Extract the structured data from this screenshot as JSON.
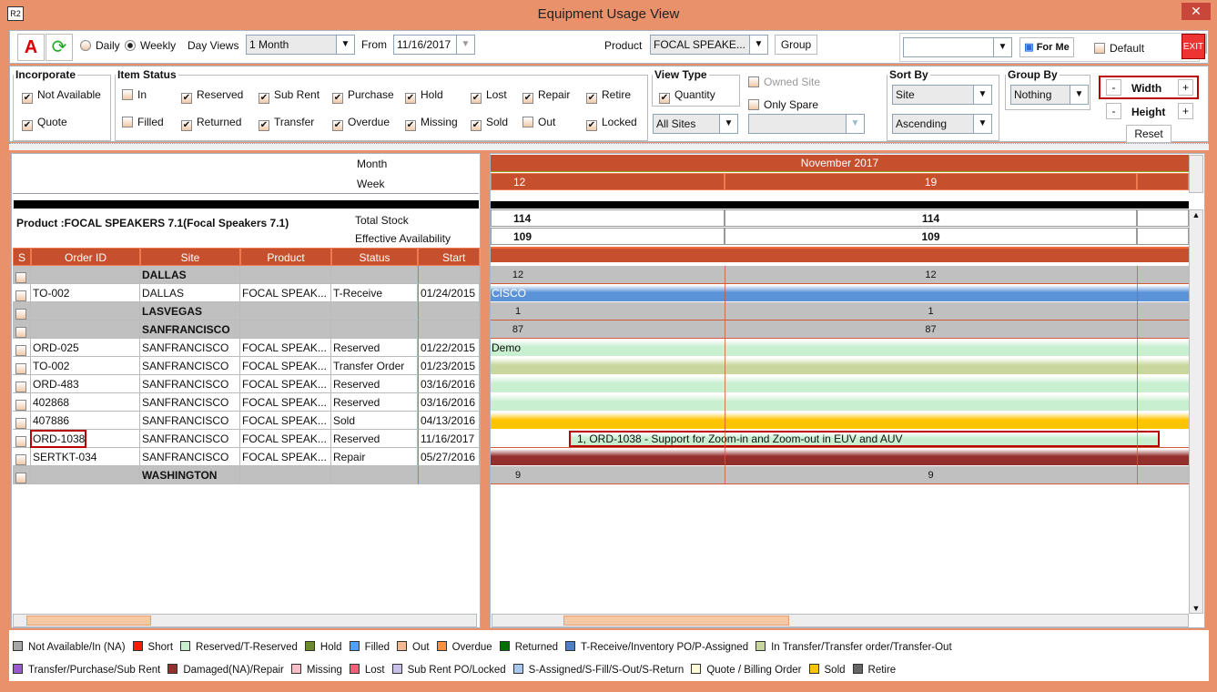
{
  "window": {
    "title": "Equipment Usage View",
    "logo": "R2"
  },
  "toolbar": {
    "daily": "Daily",
    "weekly": "Weekly",
    "selected_mode": "Weekly",
    "day_views_label": "Day Views",
    "day_views_value": "1 Month",
    "from_label": "From",
    "from_value": "11/16/2017",
    "product_label": "Product",
    "product_value": "FOCAL SPEAKE...",
    "group_button": "Group",
    "view_select_value": "",
    "for_me": "For Me",
    "default_label": "Default",
    "default_checked": false,
    "exit": "EXIT"
  },
  "incorporate": {
    "title": "Incorporate",
    "items": [
      {
        "label": "Not Available",
        "checked": true
      },
      {
        "label": "Quote",
        "checked": true
      }
    ]
  },
  "item_status": {
    "title": "Item Status",
    "items": [
      {
        "label": "In",
        "checked": false
      },
      {
        "label": "Reserved",
        "checked": true
      },
      {
        "label": "Sub Rent",
        "checked": true
      },
      {
        "label": "Purchase",
        "checked": true
      },
      {
        "label": "Hold",
        "checked": true
      },
      {
        "label": "Lost",
        "checked": true
      },
      {
        "label": "Repair",
        "checked": true
      },
      {
        "label": "Retire",
        "checked": true
      },
      {
        "label": "Filled",
        "checked": false
      },
      {
        "label": "Returned",
        "checked": true
      },
      {
        "label": "Transfer",
        "checked": true
      },
      {
        "label": "Overdue",
        "checked": true
      },
      {
        "label": "Missing",
        "checked": true
      },
      {
        "label": "Sold",
        "checked": true
      },
      {
        "label": "Out",
        "checked": false
      },
      {
        "label": "Locked",
        "checked": true
      }
    ]
  },
  "view_type": {
    "title": "View Type",
    "quantity": "Quantity",
    "quantity_checked": true,
    "sites": "All Sites",
    "owned_site": "Owned Site",
    "only_spare": "Only Spare"
  },
  "sort_by": {
    "title": "Sort By",
    "field": "Site",
    "order": "Ascending"
  },
  "group_by": {
    "title": "Group By",
    "value": "Nothing"
  },
  "size": {
    "minus": "-",
    "plus": "+",
    "width": "Width",
    "height": "Height",
    "reset": "Reset"
  },
  "left": {
    "month_label": "Month",
    "week_label": "Week",
    "product": "Product :FOCAL SPEAKERS 7.1(Focal Speakers 7.1)",
    "total_stock": "Total Stock",
    "effective": "Effective Availability",
    "columns": [
      "S",
      "Order ID",
      "Site",
      "Product",
      "Status",
      "Start Da"
    ],
    "rows": [
      {
        "group": true,
        "site": "DALLAS"
      },
      {
        "id": "TO-002",
        "site": "DALLAS",
        "product": "FOCAL SPEAK...",
        "status": "T-Receive",
        "start": "01/24/2015"
      },
      {
        "group": true,
        "site": "LASVEGAS"
      },
      {
        "group": true,
        "site": "SANFRANCISCO"
      },
      {
        "id": "ORD-025",
        "site": "SANFRANCISCO",
        "product": "FOCAL SPEAK...",
        "status": "Reserved",
        "start": "01/22/2015"
      },
      {
        "id": "TO-002",
        "site": "SANFRANCISCO",
        "product": "FOCAL SPEAK...",
        "status": "Transfer Order",
        "start": "01/23/2015"
      },
      {
        "id": "ORD-483",
        "site": "SANFRANCISCO",
        "product": "FOCAL SPEAK...",
        "status": "Reserved",
        "start": "03/16/2016"
      },
      {
        "id": "402868",
        "site": "SANFRANCISCO",
        "product": "FOCAL SPEAK...",
        "status": "Reserved",
        "start": "03/16/2016"
      },
      {
        "id": "407886",
        "site": "SANFRANCISCO",
        "product": "FOCAL SPEAK...",
        "status": "Sold",
        "start": "04/13/2016"
      },
      {
        "id": "ORD-1038",
        "site": "SANFRANCISCO",
        "product": "FOCAL SPEAK...",
        "status": "Reserved",
        "start": "11/16/2017",
        "highlight": true
      },
      {
        "id": "SERTKT-034",
        "site": "SANFRANCISCO",
        "product": "FOCAL SPEAK...",
        "status": "Repair",
        "start": "05/27/2016"
      },
      {
        "group": true,
        "site": "WASHINGTON"
      }
    ]
  },
  "right": {
    "month": "November 2017",
    "weeks": [
      "12",
      "19",
      ""
    ],
    "total_stock": [
      "114",
      "114",
      ""
    ],
    "effective": [
      "109",
      "109",
      ""
    ],
    "rows": [
      {
        "counts": [
          "12",
          "12"
        ]
      },
      {
        "bar": "#5b93d8",
        "text": "CISCO",
        "text_color": "#fff"
      },
      {
        "counts": [
          "1",
          "1"
        ]
      },
      {
        "counts": [
          "87",
          "87"
        ]
      },
      {
        "bar": "#c8efd0",
        "text": "Demo"
      },
      {
        "bar": "#c9d79e",
        "text": ""
      },
      {
        "bar": "#c8efd0",
        "text": ""
      },
      {
        "bar": "#c8efd0",
        "text": ""
      },
      {
        "bar": "#ffc400",
        "text": ""
      },
      {
        "bar": "#c8efd0",
        "text": "1, ORD-1038 - Support for Zoom-in and Zoom-out in EUV and AUV",
        "partial": true
      },
      {
        "bar": "#93302e",
        "text": ""
      },
      {
        "counts": [
          "9",
          "9"
        ]
      }
    ]
  },
  "legend": [
    {
      "label": "Not Available/In (NA)",
      "color": "#a8a8a8"
    },
    {
      "label": "Short",
      "color": "#ff1a00"
    },
    {
      "label": "Reserved/T-Reserved",
      "color": "#c8efd0"
    },
    {
      "label": "Hold",
      "color": "#6b8a2e"
    },
    {
      "label": "Filled",
      "color": "#4fa0ff"
    },
    {
      "label": "Out",
      "color": "#f6b890"
    },
    {
      "label": "Overdue",
      "color": "#f7913f"
    },
    {
      "label": "Returned",
      "color": "#007000"
    },
    {
      "label": "T-Receive/Inventory PO/P-Assigned",
      "color": "#4d7fc4"
    },
    {
      "label": "In Transfer/Transfer order/Transfer-Out",
      "color": "#c9d79e"
    },
    {
      "label": "Transfer/Purchase/Sub Rent",
      "color": "#9b59d0"
    },
    {
      "label": "Damaged(NA)/Repair",
      "color": "#93302e"
    },
    {
      "label": "Missing",
      "color": "#f7c0c8"
    },
    {
      "label": "Lost",
      "color": "#f06078"
    },
    {
      "label": "Sub Rent PO/Locked",
      "color": "#c8c0e8"
    },
    {
      "label": "S-Assigned/S-Fill/S-Out/S-Return",
      "color": "#a8c8ee"
    },
    {
      "label": "Quote / Billing Order",
      "color": "#fffbd8"
    },
    {
      "label": "Sold",
      "color": "#ffc400"
    },
    {
      "label": "Retire",
      "color": "#666666"
    }
  ]
}
